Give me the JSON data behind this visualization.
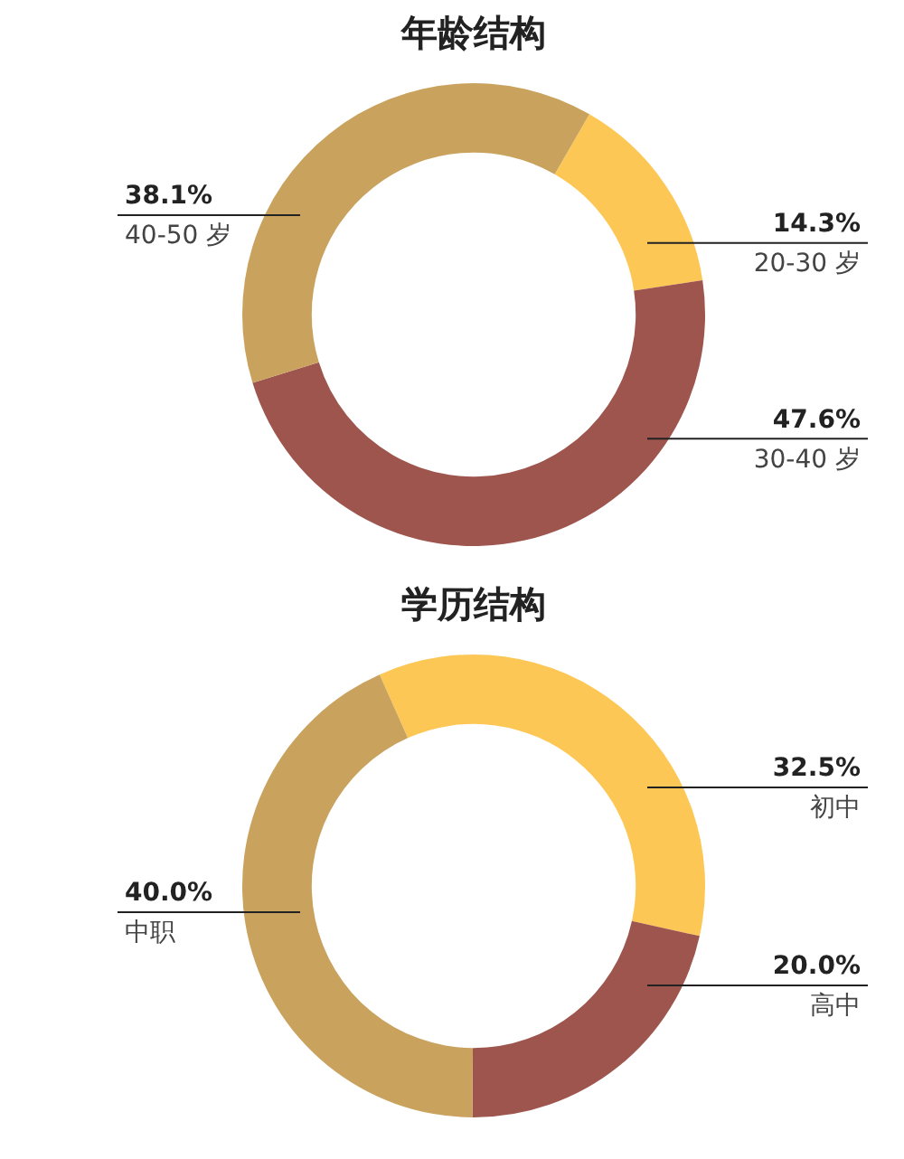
{
  "chart_data": [
    {
      "type": "donut",
      "title": "年龄结构",
      "categories": [
        "20-30 岁",
        "30-40 岁",
        "40-50 岁"
      ],
      "values": [
        14.3,
        47.6,
        38.1
      ],
      "value_labels": [
        "14.3%",
        "47.6%",
        "38.1%"
      ],
      "colors": [
        "#fdc755",
        "#9e554d",
        "#c9a25e"
      ],
      "legend": false
    },
    {
      "type": "donut",
      "title": "学历结构",
      "categories": [
        "初中",
        "高中",
        "中职"
      ],
      "values": [
        32.5,
        20.0,
        40.0
      ],
      "value_labels": [
        "32.5%",
        "20.0%",
        "40.0%"
      ],
      "colors": [
        "#fdc755",
        "#9e554d",
        "#c9a25e"
      ],
      "legend": false
    }
  ]
}
